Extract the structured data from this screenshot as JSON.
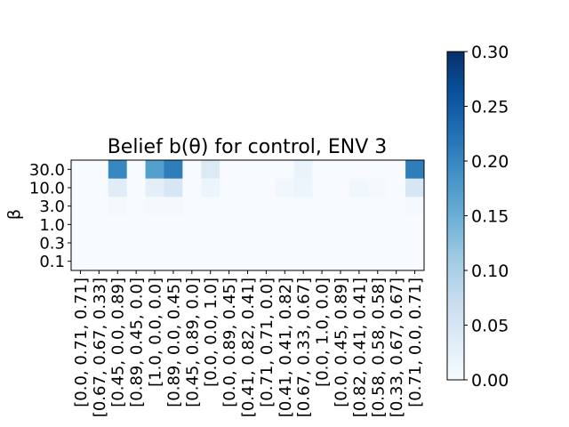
{
  "chart_data": {
    "type": "heatmap",
    "title": "Belief b(θ) for control, ENV 3",
    "xlabel": "",
    "ylabel": "β",
    "rows": [
      "30.0",
      "10.0",
      "3.0",
      "1.0",
      "0.3",
      "0.1"
    ],
    "columns": [
      "[0.0, 0.71, 0.71]",
      "[0.67, 0.67, 0.33]",
      "[0.45, 0.0, 0.89]",
      "[0.89, 0.45, 0.0]",
      "[1.0, 0.0, 0.0]",
      "[0.89, 0.0, 0.45]",
      "[0.45, 0.89, 0.0]",
      "[0.0, 0.0, 1.0]",
      "[0.0, 0.89, 0.45]",
      "[0.41, 0.82, 0.41]",
      "[0.71, 0.71, 0.0]",
      "[0.41, 0.41, 0.82]",
      "[0.67, 0.33, 0.67]",
      "[0.0, 1.0, 0.0]",
      "[0.0, 0.45, 0.89]",
      "[0.82, 0.41, 0.41]",
      "[0.58, 0.58, 0.58]",
      "[0.33, 0.67, 0.67]",
      "[0.71, 0.0, 0.71]"
    ],
    "values": [
      [
        0.0,
        0.0,
        0.2,
        0.0,
        0.17,
        0.21,
        0.0,
        0.04,
        0.0,
        0.0,
        0.0,
        0.0,
        0.02,
        0.0,
        0.0,
        0.0,
        0.0,
        0.0,
        0.21
      ],
      [
        0.0,
        0.0,
        0.035,
        0.0,
        0.03,
        0.05,
        0.0,
        0.015,
        0.0,
        0.0,
        0.0,
        0.01,
        0.015,
        0.0,
        0.0,
        0.01,
        0.005,
        0.0,
        0.05
      ],
      [
        0.0,
        0.0,
        0.005,
        0.0,
        0.005,
        0.005,
        0.0,
        0.0,
        0.0,
        0.0,
        0.0,
        0.0,
        0.003,
        0.0,
        0.0,
        0.0,
        0.0,
        0.0,
        0.005
      ],
      [
        0.0,
        0.0,
        0.0,
        0.0,
        0.0,
        0.0,
        0.0,
        0.0,
        0.0,
        0.0,
        0.0,
        0.0,
        0.0,
        0.0,
        0.0,
        0.0,
        0.0,
        0.0,
        0.0
      ],
      [
        0.0,
        0.0,
        0.0,
        0.0,
        0.0,
        0.0,
        0.0,
        0.0,
        0.0,
        0.0,
        0.0,
        0.0,
        0.0,
        0.0,
        0.0,
        0.0,
        0.0,
        0.0,
        0.0
      ],
      [
        0.0,
        0.0,
        0.0,
        0.0,
        0.0,
        0.0,
        0.0,
        0.0,
        0.0,
        0.0,
        0.0,
        0.0,
        0.0,
        0.0,
        0.0,
        0.0,
        0.0,
        0.0,
        0.0
      ]
    ],
    "colormap": "Blues",
    "vmin": 0.0,
    "vmax": 0.3,
    "colorbar_ticks": [
      "0.00",
      "0.05",
      "0.10",
      "0.15",
      "0.20",
      "0.25",
      "0.30"
    ],
    "grid": false
  }
}
